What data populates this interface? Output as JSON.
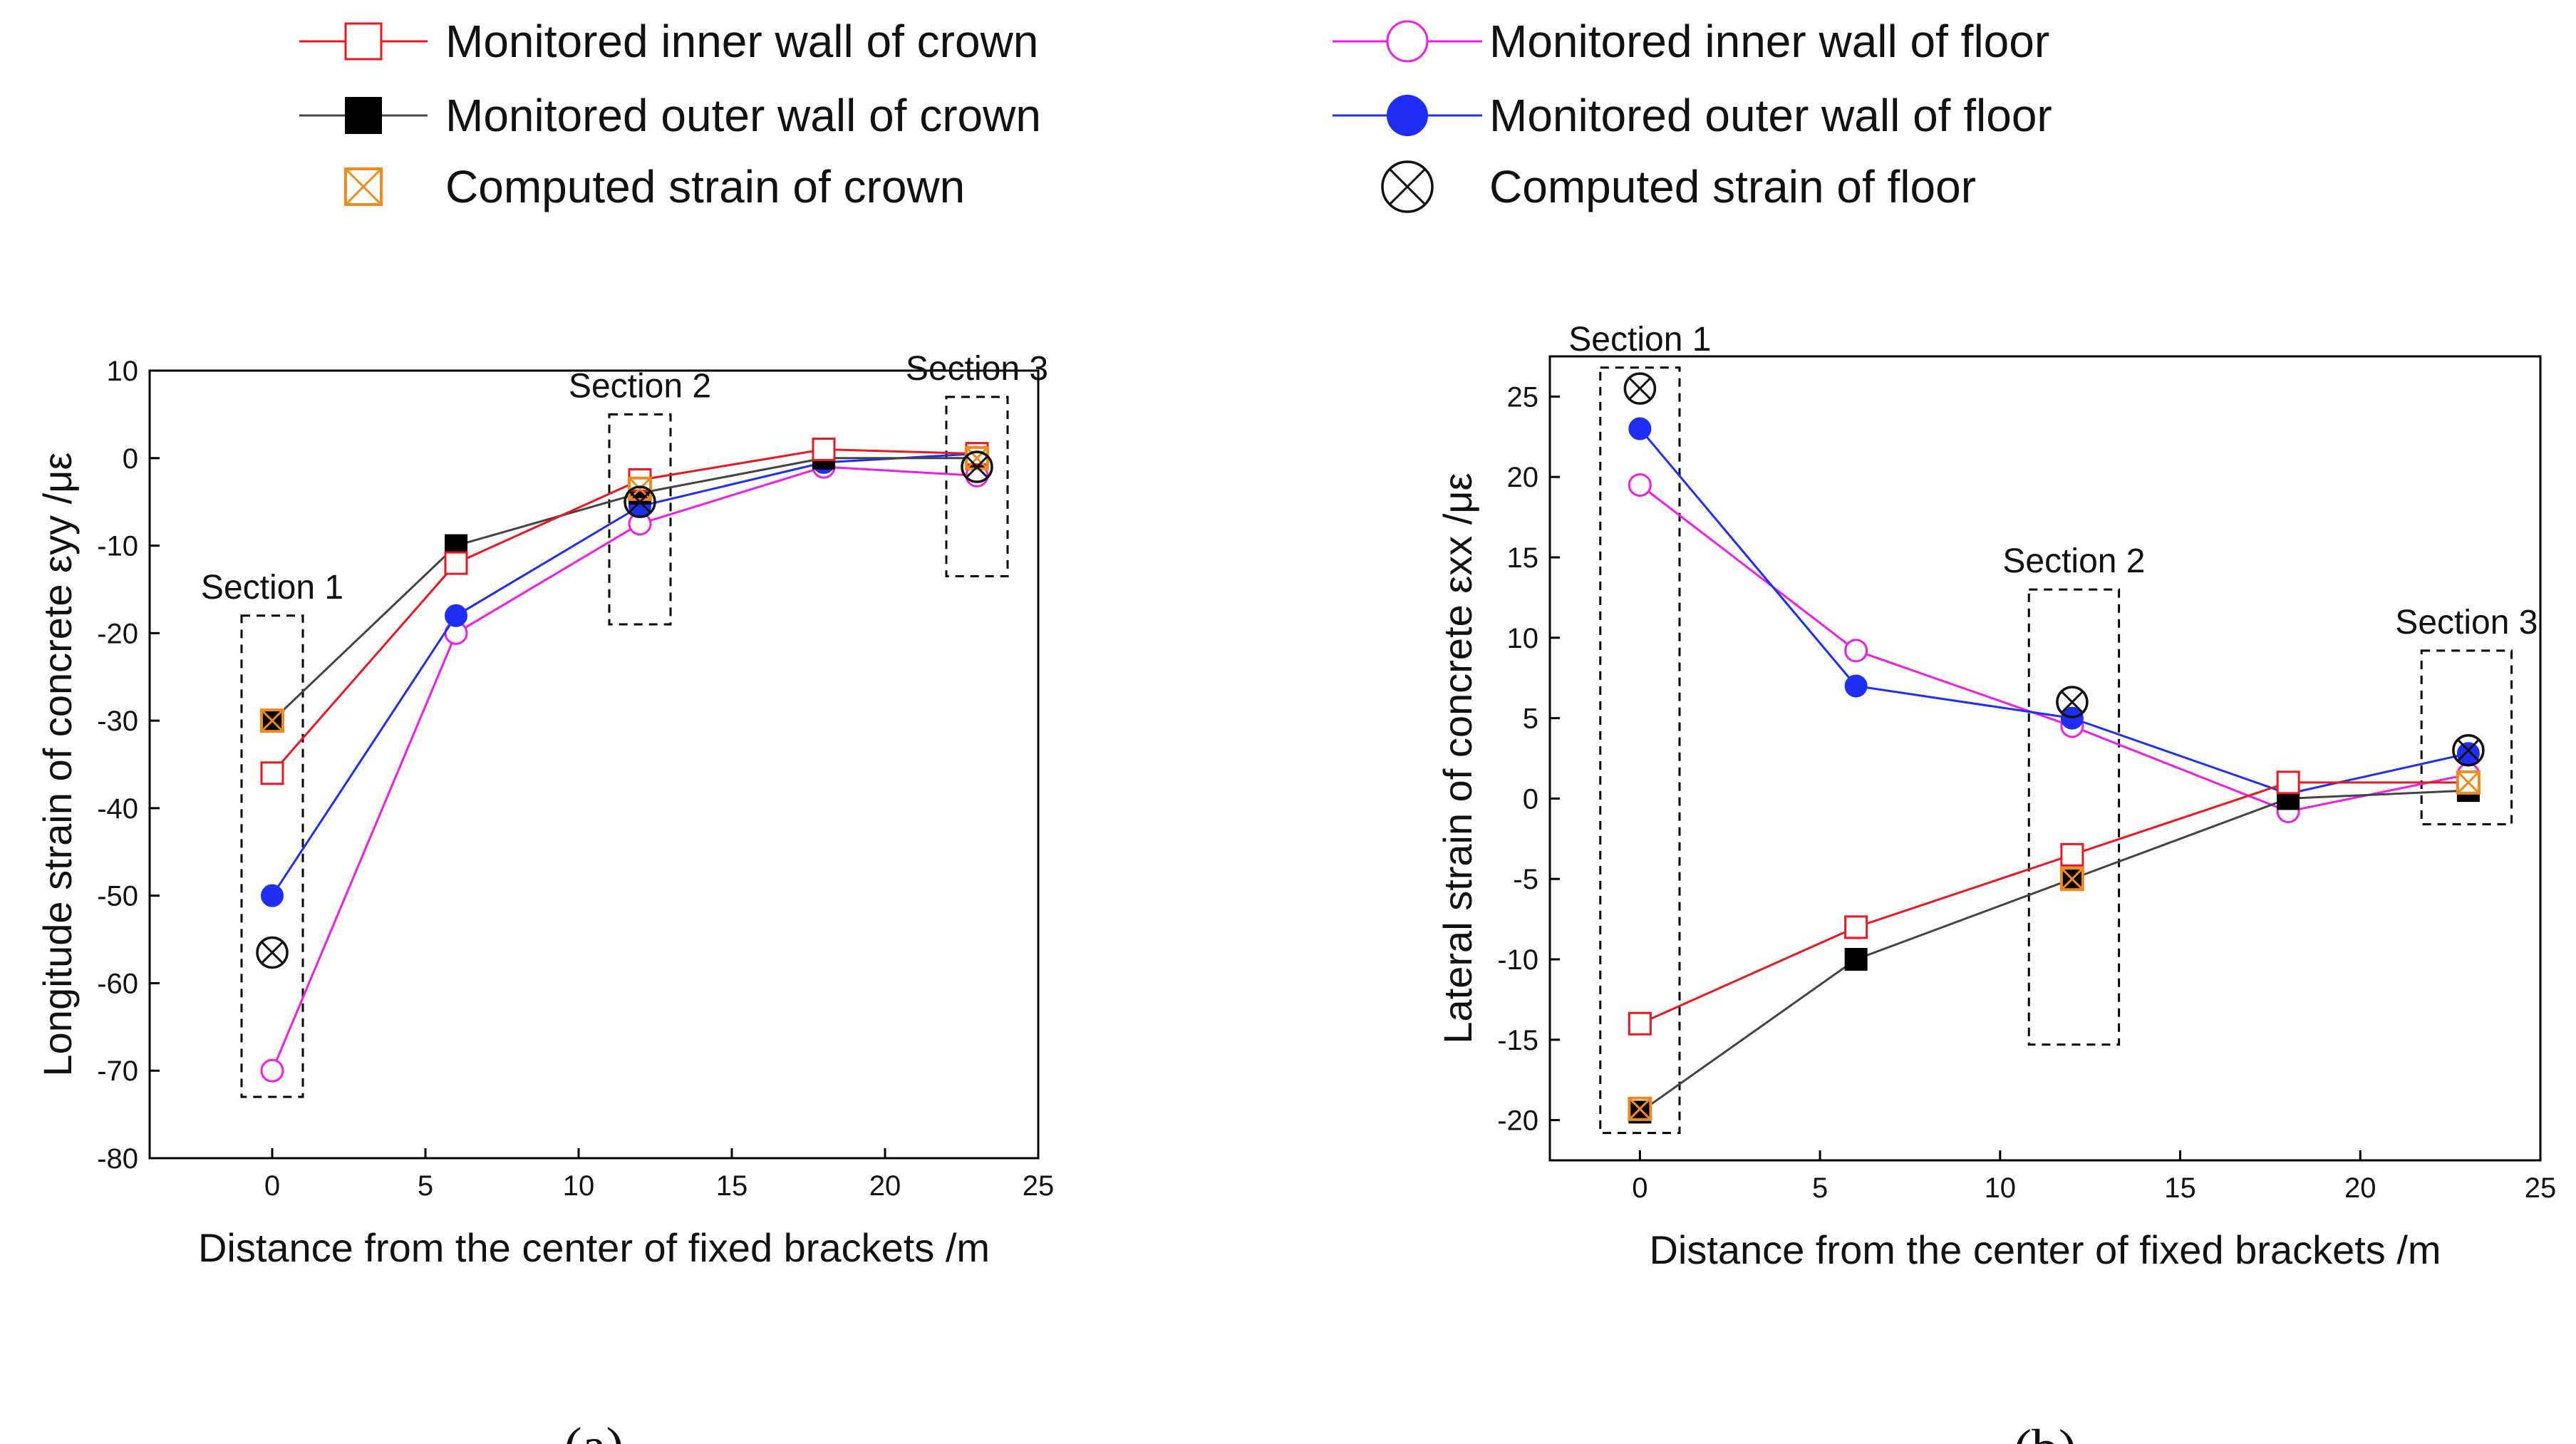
{
  "legend": [
    {
      "key": "inner_crown",
      "label": "Monitored inner wall of crown",
      "marker": "open-square",
      "color": "#e8191f"
    },
    {
      "key": "outer_crown",
      "label": "Monitored outer wall of crown",
      "marker": "filled-square",
      "color": "#444444"
    },
    {
      "key": "computed_crown",
      "label": "Computed strain of crown",
      "marker": "crossed-square",
      "color": "#f08a1c"
    },
    {
      "key": "inner_floor",
      "label": "Monitored inner wall of floor",
      "marker": "open-circle",
      "color": "#ee1ee8"
    },
    {
      "key": "outer_floor",
      "label": "Monitored outer wall of floor",
      "marker": "filled-circle",
      "color": "#1e2ef5"
    },
    {
      "key": "computed_floor",
      "label": "Computed strain of floor",
      "marker": "crossed-circle",
      "color": "#111111"
    }
  ],
  "chart_data": [
    {
      "type": "line",
      "panel_label": "(a)",
      "xlabel": "Distance from the center of fixed brackets /m",
      "ylabel": "Longitude strain of concrete εyy /με",
      "xlim": [
        -4,
        25
      ],
      "ylim": [
        -80,
        10
      ],
      "xticks": [
        0,
        5,
        10,
        15,
        20,
        25
      ],
      "yticks": [
        10,
        0,
        -10,
        -20,
        -30,
        -40,
        -50,
        -60,
        -70,
        -80
      ],
      "sections": [
        {
          "label": "Section 1",
          "x": [
            -1,
            1
          ],
          "y": [
            -73,
            -18
          ]
        },
        {
          "label": "Section 2",
          "x": [
            11,
            13
          ],
          "y": [
            -19,
            5
          ]
        },
        {
          "label": "Section 3",
          "x": [
            22,
            24
          ],
          "y": [
            -13.5,
            7
          ]
        }
      ],
      "series": [
        {
          "name": "Monitored inner wall of crown",
          "key": "inner_crown",
          "x": [
            0,
            6,
            12,
            18,
            23
          ],
          "values": [
            -36,
            -12,
            -2.5,
            1,
            0.5
          ]
        },
        {
          "name": "Monitored outer wall of crown",
          "key": "outer_crown",
          "x": [
            0,
            6,
            12,
            18,
            23
          ],
          "values": [
            -30,
            -10,
            -4,
            0,
            0
          ]
        },
        {
          "name": "Monitored inner wall of floor",
          "key": "inner_floor",
          "x": [
            0,
            6,
            12,
            18,
            23
          ],
          "values": [
            -70,
            -20,
            -7.5,
            -1,
            -2
          ]
        },
        {
          "name": "Monitored outer wall of floor",
          "key": "outer_floor",
          "x": [
            0,
            6,
            12,
            18,
            23
          ],
          "values": [
            -50,
            -18,
            -5.5,
            -0.5,
            0.5
          ]
        },
        {
          "name": "Computed strain of crown",
          "key": "computed_crown",
          "x": [
            0,
            12,
            23
          ],
          "values": [
            -30,
            -3.5,
            0
          ]
        },
        {
          "name": "Computed strain of floor",
          "key": "computed_floor",
          "x": [
            0,
            12,
            23
          ],
          "values": [
            -56.5,
            -5,
            -1
          ]
        }
      ]
    },
    {
      "type": "line",
      "panel_label": "(b)",
      "xlabel": "Distance from the center of fixed brackets /m",
      "ylabel": "Lateral strain of concrete εxx /με",
      "xlim": [
        -2.5,
        25
      ],
      "ylim": [
        -22.5,
        27.5
      ],
      "xticks": [
        0,
        5,
        10,
        15,
        20,
        25
      ],
      "yticks": [
        25,
        20,
        15,
        10,
        5,
        0,
        -5,
        -10,
        -15,
        -20
      ],
      "sections": [
        {
          "label": "Section 1",
          "x": [
            -1.1,
            1.1
          ],
          "y": [
            -20.8,
            26.8
          ]
        },
        {
          "label": "Section 2",
          "x": [
            10.8,
            13.3
          ],
          "y": [
            -15.3,
            13
          ]
        },
        {
          "label": "Section 3",
          "x": [
            21.7,
            24.2
          ],
          "y": [
            -1.6,
            9.2
          ]
        }
      ],
      "series": [
        {
          "name": "Monitored inner wall of crown",
          "key": "inner_crown",
          "x": [
            0,
            6,
            12,
            18,
            23
          ],
          "values": [
            -14,
            -8,
            -3.5,
            1,
            1
          ]
        },
        {
          "name": "Monitored outer wall of crown",
          "key": "outer_crown",
          "x": [
            0,
            6,
            12,
            18,
            23
          ],
          "values": [
            -19.5,
            -10,
            -5,
            0,
            0.5
          ]
        },
        {
          "name": "Monitored inner wall of floor",
          "key": "inner_floor",
          "x": [
            0,
            6,
            12,
            18,
            23
          ],
          "values": [
            19.5,
            9.2,
            4.5,
            -0.8,
            1.5
          ]
        },
        {
          "name": "Monitored outer wall of floor",
          "key": "outer_floor",
          "x": [
            0,
            6,
            12,
            18,
            23
          ],
          "values": [
            23,
            7,
            5,
            0.3,
            2.8
          ]
        },
        {
          "name": "Computed strain of crown",
          "key": "computed_crown",
          "x": [
            0,
            12,
            23
          ],
          "values": [
            -19.3,
            -5,
            1
          ]
        },
        {
          "name": "Computed strain of floor",
          "key": "computed_floor",
          "x": [
            0,
            12,
            23
          ],
          "values": [
            25.5,
            6,
            3
          ]
        }
      ]
    }
  ]
}
